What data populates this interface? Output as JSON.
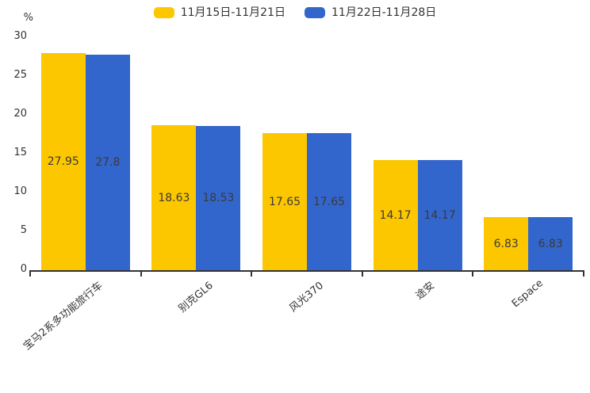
{
  "chart_data": {
    "type": "bar",
    "title": "",
    "categories": [
      "宝马2系多功能旅行车",
      "别克GL6",
      "风光370",
      "途安",
      "Espace"
    ],
    "series": [
      {
        "name": "11月15日-11月21日",
        "color": "#fdc700",
        "values": [
          27.95,
          18.63,
          17.65,
          14.17,
          6.83
        ]
      },
      {
        "name": "11月22日-11月28日",
        "color": "#3366cc",
        "values": [
          27.8,
          18.53,
          17.65,
          14.17,
          6.83
        ]
      }
    ],
    "xlabel": "",
    "ylabel": "%",
    "ylim": [
      0,
      30
    ],
    "yticks": [
      0,
      5,
      10,
      15,
      20,
      25,
      30
    ],
    "grid": false,
    "legend_position": "top",
    "value_labels_inside_bars": true,
    "x_label_rotation_deg": -40,
    "axis_color": "#333333",
    "text_color": "#333333"
  }
}
